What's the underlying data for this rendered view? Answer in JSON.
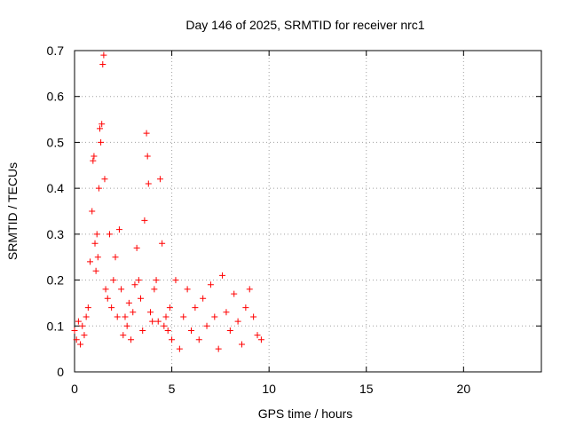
{
  "chart_data": {
    "type": "scatter",
    "title": "Day 146 of 2025, SRMTID for receiver nrc1",
    "xlabel": "GPS time / hours",
    "ylabel": "SRMTID / TECUs",
    "xlim": [
      0,
      24
    ],
    "ylim": [
      0,
      0.7
    ],
    "xticks": [
      0,
      5,
      10,
      15,
      20
    ],
    "xtick_labels": [
      "0",
      "5",
      "10",
      "15",
      "20"
    ],
    "yticks": [
      0,
      0.1,
      0.2,
      0.3,
      0.4,
      0.5,
      0.6,
      0.7
    ],
    "ytick_labels": [
      "0",
      "0.1",
      "0.2",
      "0.3",
      "0.4",
      "0.5",
      "0.6",
      "0.7"
    ],
    "grid": true,
    "marker": "+",
    "series": [
      {
        "name": "nrc1",
        "color": "#ff0000",
        "x": [
          0.0,
          0.1,
          0.2,
          0.3,
          0.4,
          0.5,
          0.6,
          0.7,
          0.8,
          0.9,
          0.95,
          1.0,
          1.05,
          1.1,
          1.15,
          1.2,
          1.25,
          1.3,
          1.35,
          1.4,
          1.45,
          1.5,
          1.55,
          1.6,
          1.7,
          1.8,
          1.9,
          2.0,
          2.1,
          2.2,
          2.3,
          2.4,
          2.5,
          2.6,
          2.7,
          2.8,
          2.9,
          3.0,
          3.1,
          3.2,
          3.3,
          3.4,
          3.5,
          3.6,
          3.7,
          3.75,
          3.8,
          3.9,
          4.0,
          4.1,
          4.2,
          4.3,
          4.4,
          4.5,
          4.6,
          4.7,
          4.8,
          4.9,
          5.0,
          5.2,
          5.4,
          5.6,
          5.8,
          6.0,
          6.2,
          6.4,
          6.6,
          6.8,
          7.0,
          7.2,
          7.4,
          7.6,
          7.8,
          8.0,
          8.2,
          8.4,
          8.6,
          8.8,
          9.0,
          9.2,
          9.4,
          9.6
        ],
        "y": [
          0.09,
          0.07,
          0.11,
          0.06,
          0.1,
          0.08,
          0.12,
          0.14,
          0.24,
          0.35,
          0.46,
          0.47,
          0.28,
          0.22,
          0.3,
          0.25,
          0.4,
          0.53,
          0.5,
          0.54,
          0.67,
          0.69,
          0.42,
          0.18,
          0.16,
          0.3,
          0.14,
          0.2,
          0.25,
          0.12,
          0.31,
          0.18,
          0.08,
          0.12,
          0.1,
          0.15,
          0.07,
          0.13,
          0.19,
          0.27,
          0.2,
          0.16,
          0.09,
          0.33,
          0.52,
          0.47,
          0.41,
          0.13,
          0.11,
          0.18,
          0.2,
          0.11,
          0.42,
          0.28,
          0.1,
          0.12,
          0.09,
          0.14,
          0.07,
          0.2,
          0.05,
          0.12,
          0.18,
          0.09,
          0.14,
          0.07,
          0.16,
          0.1,
          0.19,
          0.12,
          0.05,
          0.21,
          0.13,
          0.09,
          0.17,
          0.11,
          0.06,
          0.14,
          0.18,
          0.12,
          0.08,
          0.07
        ]
      }
    ]
  }
}
